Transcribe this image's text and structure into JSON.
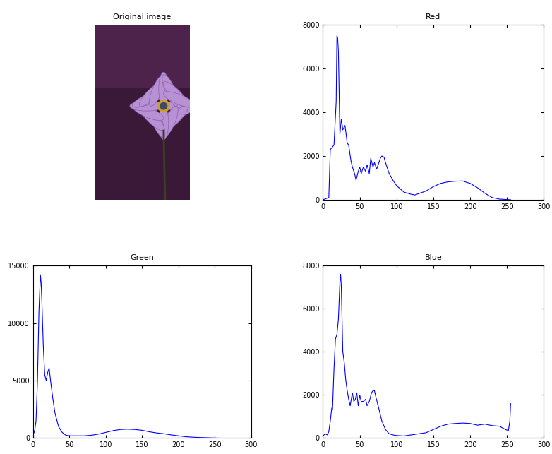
{
  "chart_data": [
    {
      "type": "image",
      "title": "Original image"
    },
    {
      "type": "line",
      "title": "Red",
      "color": "#0000ff",
      "x": [
        0,
        8,
        10,
        15,
        18,
        19,
        20,
        21,
        22,
        23,
        25,
        27,
        30,
        33,
        35,
        38,
        40,
        43,
        45,
        48,
        50,
        52,
        55,
        58,
        60,
        63,
        65,
        68,
        70,
        73,
        75,
        78,
        80,
        83,
        85,
        90,
        95,
        100,
        105,
        110,
        120,
        125,
        130,
        140,
        150,
        160,
        170,
        180,
        190,
        195,
        200,
        210,
        220,
        230,
        240,
        250,
        255
      ],
      "values": [
        0,
        100,
        2300,
        2500,
        4500,
        7500,
        7400,
        6800,
        5000,
        3000,
        3700,
        3200,
        3400,
        2600,
        2500,
        1800,
        1500,
        1200,
        900,
        1300,
        1500,
        1200,
        1500,
        1300,
        1600,
        1200,
        1900,
        1500,
        1700,
        1400,
        1600,
        1900,
        2000,
        1950,
        1700,
        1200,
        900,
        650,
        500,
        350,
        250,
        220,
        280,
        400,
        600,
        750,
        820,
        850,
        860,
        800,
        750,
        550,
        300,
        100,
        30,
        10,
        0
      ],
      "xlim": [
        0,
        300
      ],
      "xticks": [
        0,
        50,
        100,
        150,
        200,
        250,
        300
      ],
      "ylim": [
        0,
        8000
      ],
      "yticks": [
        0,
        2000,
        4000,
        6000,
        8000
      ]
    },
    {
      "type": "line",
      "title": "Green",
      "color": "#0000ff",
      "x": [
        0,
        2,
        4,
        6,
        8,
        10,
        11,
        12,
        14,
        16,
        18,
        20,
        22,
        24,
        27,
        30,
        35,
        40,
        45,
        50,
        60,
        70,
        80,
        90,
        100,
        110,
        120,
        130,
        140,
        150,
        160,
        170,
        180,
        190,
        200,
        210,
        220,
        230,
        240,
        250,
        255
      ],
      "values": [
        300,
        600,
        1500,
        5000,
        11000,
        14200,
        13500,
        12000,
        8000,
        5500,
        5000,
        5700,
        6100,
        5000,
        3500,
        2200,
        1000,
        500,
        250,
        200,
        200,
        200,
        250,
        350,
        500,
        650,
        750,
        780,
        750,
        680,
        550,
        450,
        380,
        280,
        200,
        120,
        80,
        50,
        30,
        10,
        0
      ],
      "xlim": [
        0,
        300
      ],
      "xticks": [
        0,
        50,
        100,
        150,
        200,
        250,
        300
      ],
      "ylim": [
        0,
        15000
      ],
      "yticks": [
        0,
        5000,
        10000,
        15000
      ]
    },
    {
      "type": "line",
      "title": "Blue",
      "color": "#0000ff",
      "x": [
        0,
        3,
        6,
        8,
        10,
        12,
        13,
        15,
        17,
        19,
        21,
        23,
        24,
        25,
        27,
        29,
        31,
        33,
        35,
        37,
        40,
        42,
        44,
        46,
        48,
        50,
        52,
        55,
        58,
        60,
        63,
        66,
        68,
        70,
        72,
        75,
        80,
        85,
        90,
        95,
        100,
        110,
        120,
        130,
        140,
        150,
        160,
        170,
        180,
        190,
        200,
        210,
        220,
        230,
        240,
        248,
        252,
        254,
        255
      ],
      "values": [
        100,
        200,
        150,
        300,
        800,
        1400,
        1300,
        3200,
        4600,
        4800,
        5500,
        7200,
        7600,
        7000,
        4000,
        3500,
        2700,
        2200,
        1800,
        1500,
        2100,
        1700,
        1800,
        2100,
        1500,
        2000,
        1700,
        1700,
        1800,
        1500,
        1700,
        2100,
        2200,
        2200,
        1900,
        1500,
        800,
        400,
        200,
        150,
        120,
        100,
        150,
        200,
        250,
        400,
        550,
        650,
        680,
        700,
        680,
        600,
        650,
        580,
        550,
        400,
        350,
        800,
        1600
      ],
      "xlim": [
        0,
        300
      ],
      "xticks": [
        0,
        50,
        100,
        150,
        200,
        250,
        300
      ],
      "ylim": [
        0,
        8000
      ],
      "yticks": [
        0,
        2000,
        4000,
        6000,
        8000
      ]
    }
  ]
}
